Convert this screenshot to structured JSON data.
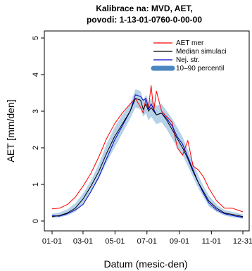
{
  "chart_data": {
    "type": "line",
    "title": [
      "Kalibrace na: MVD, AET,",
      "povodi: 1-13-01-0760-0-00-00"
    ],
    "xlabel": "Datum (mesic-den)",
    "ylabel": "AET [mm/den]",
    "x_ticks": [
      "01-01",
      "03-01",
      "05-01",
      "07-01",
      "09-01",
      "11-01",
      "12-31"
    ],
    "x_tick_days": [
      1,
      60,
      121,
      182,
      244,
      305,
      365
    ],
    "xlim": [
      1,
      365
    ],
    "y_ticks": [
      0,
      1,
      2,
      3,
      4,
      5
    ],
    "ylim": [
      0,
      5
    ],
    "legend_position": "top-right",
    "x": [
      1,
      15,
      30,
      45,
      60,
      75,
      90,
      105,
      120,
      135,
      150,
      160,
      170,
      175,
      180,
      185,
      190,
      195,
      200,
      210,
      220,
      230,
      240,
      250,
      260,
      270,
      280,
      290,
      300,
      315,
      330,
      345,
      365
    ],
    "series": [
      {
        "name": "AET mer",
        "color": "#ff0000",
        "values": [
          0.33,
          0.35,
          0.45,
          0.65,
          0.95,
          1.3,
          1.75,
          2.25,
          2.65,
          2.95,
          3.2,
          3.35,
          3.1,
          2.95,
          3.35,
          3.1,
          3.7,
          3.0,
          3.55,
          3.0,
          2.85,
          2.7,
          2.0,
          1.8,
          2.2,
          1.5,
          1.4,
          1.2,
          0.9,
          0.55,
          0.35,
          0.35,
          0.25
        ]
      },
      {
        "name": "Median simulaci",
        "color": "#000000",
        "values": [
          0.12,
          0.15,
          0.22,
          0.35,
          0.6,
          0.95,
          1.35,
          1.85,
          2.3,
          2.65,
          3.0,
          3.35,
          3.3,
          3.05,
          3.2,
          3.0,
          3.1,
          3.0,
          2.9,
          2.95,
          2.75,
          2.5,
          2.25,
          2.0,
          1.7,
          1.35,
          1.05,
          0.8,
          0.55,
          0.35,
          0.22,
          0.18,
          0.12
        ]
      },
      {
        "name": "Nej. str.",
        "color": "#0000cc",
        "values": [
          0.15,
          0.13,
          0.2,
          0.3,
          0.45,
          0.8,
          1.2,
          1.7,
          2.2,
          2.6,
          3.0,
          3.45,
          3.4,
          3.3,
          3.35,
          3.05,
          3.2,
          3.05,
          2.9,
          2.95,
          2.8,
          2.6,
          2.3,
          2.1,
          1.75,
          1.4,
          1.05,
          0.75,
          0.5,
          0.3,
          0.2,
          0.15,
          0.1
        ]
      }
    ],
    "band": {
      "name": "10–90 percentil",
      "color": "#9ec3e0",
      "lower": [
        0.08,
        0.1,
        0.15,
        0.25,
        0.45,
        0.8,
        1.15,
        1.6,
        2.0,
        2.4,
        2.8,
        3.1,
        3.05,
        2.85,
        2.95,
        2.75,
        2.85,
        2.75,
        2.65,
        2.7,
        2.5,
        2.25,
        2.0,
        1.8,
        1.5,
        1.2,
        0.9,
        0.65,
        0.4,
        0.25,
        0.15,
        0.1,
        0.06
      ],
      "upper": [
        0.2,
        0.23,
        0.32,
        0.48,
        0.75,
        1.1,
        1.55,
        2.1,
        2.55,
        2.9,
        3.2,
        3.6,
        3.55,
        3.3,
        3.45,
        3.25,
        3.35,
        3.25,
        3.15,
        3.2,
        3.0,
        2.8,
        2.55,
        2.3,
        1.95,
        1.6,
        1.25,
        0.95,
        0.7,
        0.45,
        0.3,
        0.25,
        0.18
      ]
    }
  }
}
